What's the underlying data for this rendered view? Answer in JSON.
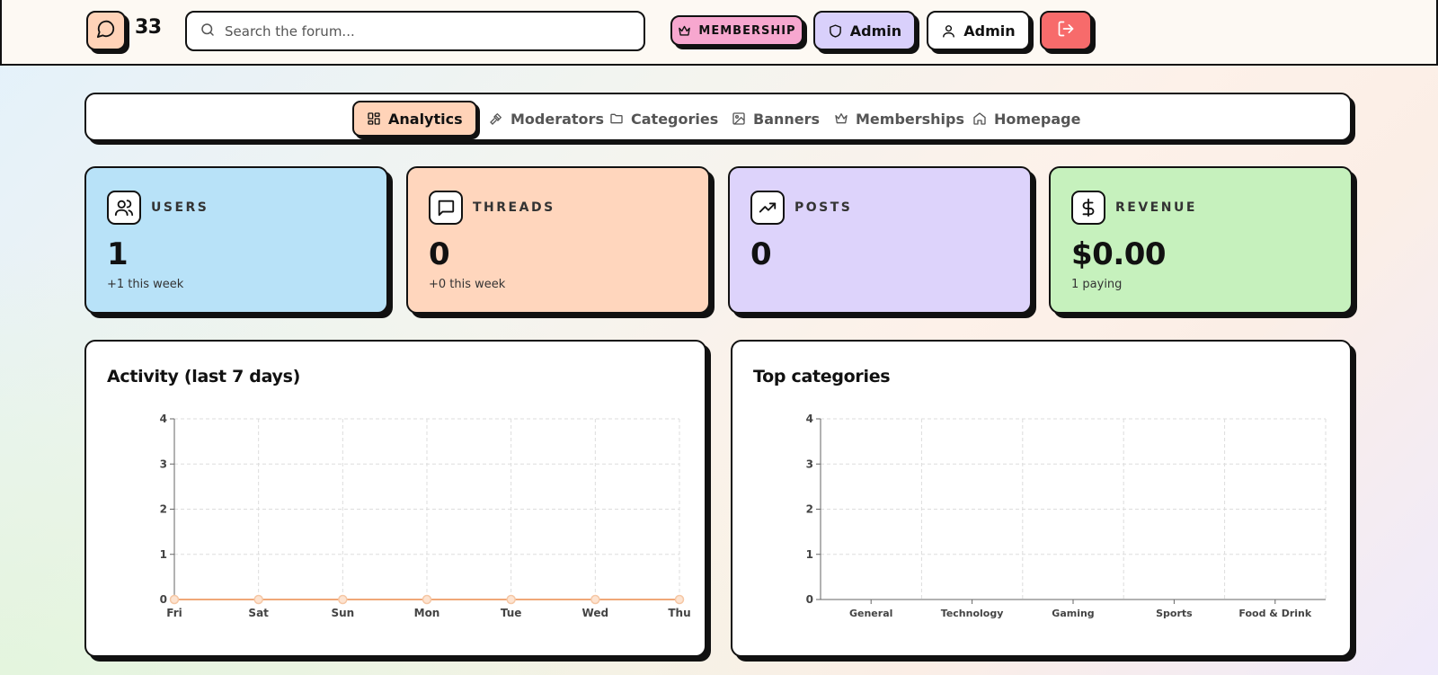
{
  "header": {
    "count": "33",
    "search_placeholder": "Search the forum...",
    "membership_label": "MEMBERSHIP",
    "admin_role_label": "Admin",
    "admin_user_label": "Admin"
  },
  "tabs": [
    {
      "label": "Analytics",
      "icon": "grid-icon",
      "active": true
    },
    {
      "label": "Moderators",
      "icon": "gavel-icon"
    },
    {
      "label": "Categories",
      "icon": "folder-icon"
    },
    {
      "label": "Banners",
      "icon": "image-icon"
    },
    {
      "label": "Memberships",
      "icon": "crown-icon"
    },
    {
      "label": "Homepage",
      "icon": "home-icon"
    }
  ],
  "stats": [
    {
      "label": "USERS",
      "value": "1",
      "sub": "+1 this week",
      "color": "#b8e2f8",
      "icon": "users-icon"
    },
    {
      "label": "THREADS",
      "value": "0",
      "sub": "+0 this week",
      "color": "#ffd6bd",
      "icon": "message-icon"
    },
    {
      "label": "POSTS",
      "value": "0",
      "sub": "",
      "color": "#ddd3fb",
      "icon": "trend-icon"
    },
    {
      "label": "REVENUE",
      "value": "$0.00",
      "sub": "1 paying",
      "color": "#c6f1bd",
      "icon": "dollar-icon"
    }
  ],
  "panels": {
    "activity_title": "Activity (last 7 days)",
    "categories_title": "Top categories"
  },
  "chart_data": [
    {
      "type": "line",
      "title": "Activity (last 7 days)",
      "categories": [
        "Fri",
        "Sat",
        "Sun",
        "Mon",
        "Tue",
        "Wed",
        "Thu"
      ],
      "series": [
        {
          "values": [
            0,
            0,
            0,
            0,
            0,
            0,
            0
          ]
        }
      ],
      "ylim": [
        0,
        4
      ],
      "yticks": [
        0,
        1,
        2,
        3,
        4
      ],
      "grid": true,
      "color": "#f0a878"
    },
    {
      "type": "bar",
      "title": "Top categories",
      "categories": [
        "General",
        "Technology",
        "Gaming",
        "Sports",
        "Food & Drink"
      ],
      "values": [
        0,
        0,
        0,
        0,
        0
      ],
      "ylim": [
        0,
        4
      ],
      "yticks": [
        0,
        1,
        2,
        3,
        4
      ],
      "grid": true
    }
  ]
}
